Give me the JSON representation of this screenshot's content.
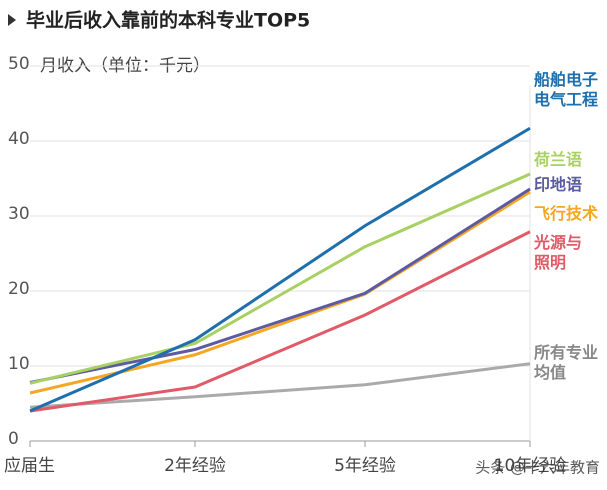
{
  "chart_data": {
    "type": "line",
    "title": "毕业后收入靠前的本科专业TOP5",
    "y_label": "月收入（单位：千元）",
    "categories": [
      "应届生",
      "2年经验",
      "5年经验",
      "10年经验"
    ],
    "series": [
      {
        "name": "船舶电子电气工程",
        "color": "#1f6fad",
        "values": [
          4,
          13.5,
          28.7,
          41.7
        ]
      },
      {
        "name": "荷兰语",
        "color": "#a9d062",
        "values": [
          7.7,
          13,
          25.9,
          35.6
        ]
      },
      {
        "name": "印地语",
        "color": "#5b5aa2",
        "values": [
          7.8,
          12.2,
          19.7,
          33.6
        ]
      },
      {
        "name": "飞行技术",
        "color": "#f5a623",
        "values": [
          6.4,
          11.5,
          19.6,
          33.2
        ]
      },
      {
        "name": "光源与照明",
        "color": "#e05a68",
        "values": [
          4,
          7.2,
          16.8,
          27.9
        ]
      },
      {
        "name": "所有专业均值",
        "color": "#aaaaaa",
        "values": [
          4.5,
          5.9,
          7.5,
          10.3
        ]
      }
    ],
    "ylim": [
      0,
      50
    ],
    "yticks": [
      0,
      10,
      20,
      30,
      40,
      50
    ],
    "grid": true,
    "watermark": "头条 @十六年教育"
  }
}
